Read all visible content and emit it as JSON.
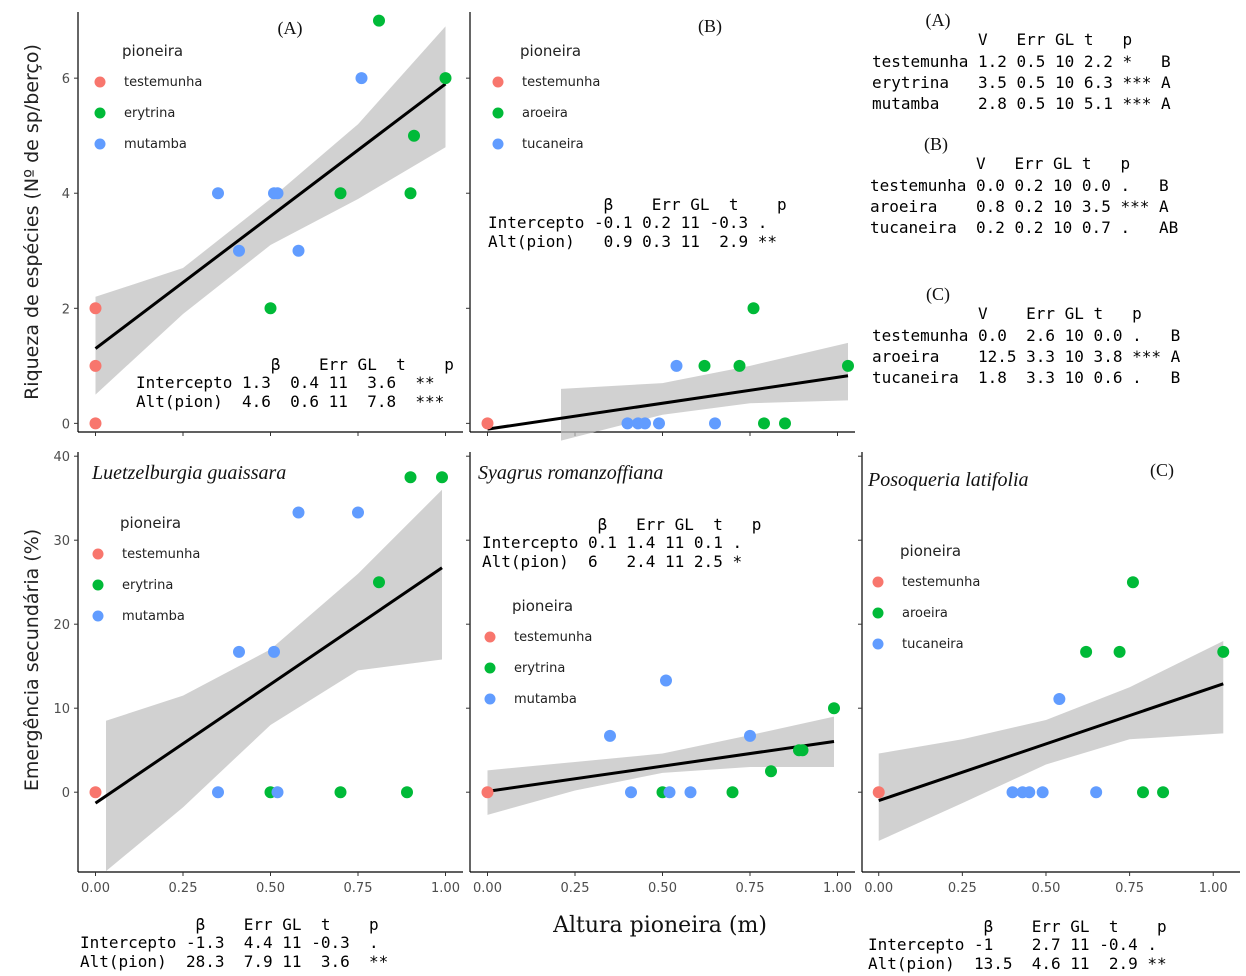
{
  "chart_data": [
    {
      "type": "scatter",
      "panel": "A",
      "title": "(A)",
      "species": "",
      "ylabel": "Riqueza de espécies  (Nº de sp/berço)",
      "yticks": [
        0,
        2,
        4,
        6
      ],
      "ylim": [
        -0.15,
        7.15
      ],
      "xticks": [],
      "xlim": [
        -0.05,
        1.05
      ],
      "legend": {
        "title": "pioneira",
        "items": [
          {
            "name": "testemunha",
            "color": "#f8766d"
          },
          {
            "name": "erytrina",
            "color": "#00ba38"
          },
          {
            "name": "mutamba",
            "color": "#619cff"
          }
        ]
      },
      "points": [
        {
          "x": 0.0,
          "y": 2,
          "g": 0
        },
        {
          "x": 0.0,
          "y": 1,
          "g": 0
        },
        {
          "x": 0.0,
          "y": 0,
          "g": 0
        },
        {
          "x": 0.5,
          "y": 2,
          "g": 1
        },
        {
          "x": 0.7,
          "y": 4,
          "g": 1
        },
        {
          "x": 0.81,
          "y": 7,
          "g": 1
        },
        {
          "x": 0.9,
          "y": 4,
          "g": 1
        },
        {
          "x": 0.91,
          "y": 5,
          "g": 1
        },
        {
          "x": 1.0,
          "y": 6,
          "g": 1
        },
        {
          "x": 0.35,
          "y": 4,
          "g": 2
        },
        {
          "x": 0.41,
          "y": 3,
          "g": 2
        },
        {
          "x": 0.51,
          "y": 4,
          "g": 2
        },
        {
          "x": 0.52,
          "y": 4,
          "g": 2
        },
        {
          "x": 0.58,
          "y": 3,
          "g": 2
        },
        {
          "x": 0.76,
          "y": 6,
          "g": 2
        }
      ],
      "fit": {
        "x0": 0.0,
        "x1": 1.0,
        "intercept": 1.3,
        "slope": 4.6
      },
      "band": [
        [
          0.0,
          0.5,
          2.2
        ],
        [
          0.25,
          1.9,
          2.7
        ],
        [
          0.5,
          3.1,
          3.9
        ],
        [
          0.75,
          3.9,
          5.2
        ],
        [
          1.0,
          4.8,
          6.9
        ]
      ],
      "stats": {
        "header": "              β    Err GL  t    p",
        "rows": [
          "Intercepto 1.3  0.4 11  3.6  **",
          "Alt(pion)  4.6  0.6 11  7.8  ***"
        ]
      }
    },
    {
      "type": "scatter",
      "panel": "B",
      "title": "(B)",
      "species": "",
      "ylabel": "",
      "yticks": [
        0,
        2,
        4,
        6
      ],
      "ylim": [
        -0.15,
        7.15
      ],
      "xticks": [],
      "xlim": [
        -0.05,
        1.05
      ],
      "legend": {
        "title": "pioneira",
        "items": [
          {
            "name": "testemunha",
            "color": "#f8766d"
          },
          {
            "name": "aroeira",
            "color": "#00ba38"
          },
          {
            "name": "tucaneira",
            "color": "#619cff"
          }
        ]
      },
      "points": [
        {
          "x": 0.0,
          "y": 0,
          "g": 0
        },
        {
          "x": 0.62,
          "y": 1,
          "g": 1
        },
        {
          "x": 0.72,
          "y": 1,
          "g": 1
        },
        {
          "x": 0.76,
          "y": 2,
          "g": 1
        },
        {
          "x": 0.79,
          "y": 0,
          "g": 1
        },
        {
          "x": 0.85,
          "y": 0,
          "g": 1
        },
        {
          "x": 1.03,
          "y": 1,
          "g": 1
        },
        {
          "x": 0.4,
          "y": 0,
          "g": 2
        },
        {
          "x": 0.43,
          "y": 0,
          "g": 2
        },
        {
          "x": 0.45,
          "y": 0,
          "g": 2
        },
        {
          "x": 0.49,
          "y": 0,
          "g": 2
        },
        {
          "x": 0.54,
          "y": 1,
          "g": 2
        },
        {
          "x": 0.65,
          "y": 0,
          "g": 2
        }
      ],
      "fit": {
        "x0": 0.0,
        "x1": 1.03,
        "intercept": -0.1,
        "slope": 0.9
      },
      "band": [
        [
          0.21,
          -0.3,
          0.6
        ],
        [
          0.5,
          0.15,
          0.7
        ],
        [
          0.75,
          0.35,
          1.0
        ],
        [
          1.03,
          0.4,
          1.4
        ]
      ],
      "stats": {
        "header": "            β    Err GL  t    p",
        "rows": [
          "Intercepto -0.1 0.2 11 -0.3 .",
          "Alt(pion)   0.9 0.3 11  2.9 **"
        ]
      }
    },
    {
      "type": "scatter",
      "panel": "A",
      "title": "",
      "species": "Luetzelburgia guaissara",
      "ylabel": "Emergência secundária  (%)",
      "yticks": [
        0,
        10,
        20,
        30,
        40
      ],
      "ylim": [
        -9.5,
        40.5
      ],
      "xticks": [
        "0.00",
        "0.25",
        "0.50",
        "0.75",
        "1.00"
      ],
      "xlim": [
        -0.05,
        1.05
      ],
      "legend": {
        "title": "pioneira",
        "items": [
          {
            "name": "testemunha",
            "color": "#f8766d"
          },
          {
            "name": "erytrina",
            "color": "#00ba38"
          },
          {
            "name": "mutamba",
            "color": "#619cff"
          }
        ]
      },
      "points": [
        {
          "x": 0.0,
          "y": 0,
          "g": 0
        },
        {
          "x": 0.5,
          "y": 0,
          "g": 1
        },
        {
          "x": 0.7,
          "y": 0,
          "g": 1
        },
        {
          "x": 0.81,
          "y": 25,
          "g": 1
        },
        {
          "x": 0.89,
          "y": 0,
          "g": 1
        },
        {
          "x": 0.9,
          "y": 37.5,
          "g": 1
        },
        {
          "x": 0.99,
          "y": 37.5,
          "g": 1
        },
        {
          "x": 0.35,
          "y": 0,
          "g": 2
        },
        {
          "x": 0.41,
          "y": 16.7,
          "g": 2
        },
        {
          "x": 0.51,
          "y": 16.7,
          "g": 2
        },
        {
          "x": 0.52,
          "y": 0,
          "g": 2
        },
        {
          "x": 0.58,
          "y": 33.3,
          "g": 2
        },
        {
          "x": 0.75,
          "y": 33.3,
          "g": 2
        }
      ],
      "fit": {
        "x0": 0.0,
        "x1": 0.99,
        "intercept": -1.3,
        "slope": 28.3
      },
      "band": [
        [
          0.03,
          -9.4,
          8.5
        ],
        [
          0.25,
          -1.8,
          11.5
        ],
        [
          0.5,
          8.0,
          17.0
        ],
        [
          0.75,
          14.5,
          26.0
        ],
        [
          0.99,
          15.8,
          36.0
        ]
      ],
      "stats": {
        "header": "            β    Err GL  t    p",
        "rows": [
          "Intercepto -1.3  4.4 11 -0.3  .",
          "Alt(pion)  28.3  7.9 11  3.6  **"
        ]
      }
    },
    {
      "type": "scatter",
      "panel": "B",
      "title": "",
      "species": "Syagrus romanzoffiana",
      "ylabel": "",
      "yticks": [
        0,
        10,
        20,
        30,
        40
      ],
      "ylim": [
        -9.5,
        40.5
      ],
      "xticks": [
        "0.00",
        "0.25",
        "0.50",
        "0.75",
        "1.00"
      ],
      "xlim": [
        -0.05,
        1.05
      ],
      "legend": {
        "title": "pioneira",
        "items": [
          {
            "name": "testemunha",
            "color": "#f8766d"
          },
          {
            "name": "erytrina",
            "color": "#00ba38"
          },
          {
            "name": "mutamba",
            "color": "#619cff"
          }
        ]
      },
      "points": [
        {
          "x": 0.0,
          "y": 0,
          "g": 0
        },
        {
          "x": 0.5,
          "y": 0,
          "g": 1
        },
        {
          "x": 0.7,
          "y": 0,
          "g": 1
        },
        {
          "x": 0.81,
          "y": 2.5,
          "g": 1
        },
        {
          "x": 0.89,
          "y": 5,
          "g": 1
        },
        {
          "x": 0.9,
          "y": 5,
          "g": 1
        },
        {
          "x": 0.99,
          "y": 10,
          "g": 1
        },
        {
          "x": 0.35,
          "y": 6.7,
          "g": 2
        },
        {
          "x": 0.41,
          "y": 0,
          "g": 2
        },
        {
          "x": 0.51,
          "y": 13.3,
          "g": 2
        },
        {
          "x": 0.52,
          "y": 0,
          "g": 2
        },
        {
          "x": 0.58,
          "y": 0,
          "g": 2
        },
        {
          "x": 0.75,
          "y": 6.7,
          "g": 2
        }
      ],
      "fit": {
        "x0": 0.0,
        "x1": 0.99,
        "intercept": 0.1,
        "slope": 6
      },
      "band": [
        [
          0.0,
          -2.7,
          2.6
        ],
        [
          0.25,
          0.2,
          3.6
        ],
        [
          0.5,
          2.3,
          4.6
        ],
        [
          0.75,
          3.0,
          6.8
        ],
        [
          0.99,
          3.0,
          9.0
        ]
      ],
      "stats": {
        "header": "            β   Err GL  t   p",
        "rows": [
          "Intercepto 0.1 1.4 11 0.1 .",
          "Alt(pion)  6   2.4 11 2.5 *"
        ]
      }
    },
    {
      "type": "scatter",
      "panel": "C",
      "title": "(C)",
      "species": "Posoqueria latifolia",
      "ylabel": "",
      "yticks": [
        0,
        10,
        20,
        30,
        40
      ],
      "ylim": [
        -9.5,
        40.5
      ],
      "xticks": [
        "0.00",
        "0.25",
        "0.50",
        "0.75",
        "1.00"
      ],
      "xlim": [
        -0.05,
        1.08
      ],
      "legend": {
        "title": "pioneira",
        "items": [
          {
            "name": "testemunha",
            "color": "#f8766d"
          },
          {
            "name": "aroeira",
            "color": "#00ba38"
          },
          {
            "name": "tucaneira",
            "color": "#619cff"
          }
        ]
      },
      "points": [
        {
          "x": 0.0,
          "y": 0,
          "g": 0
        },
        {
          "x": 0.62,
          "y": 16.7,
          "g": 1
        },
        {
          "x": 0.72,
          "y": 16.7,
          "g": 1
        },
        {
          "x": 0.76,
          "y": 25,
          "g": 1
        },
        {
          "x": 0.79,
          "y": 0,
          "g": 1
        },
        {
          "x": 0.85,
          "y": 0,
          "g": 1
        },
        {
          "x": 1.03,
          "y": 16.7,
          "g": 1
        },
        {
          "x": 0.4,
          "y": 0,
          "g": 2
        },
        {
          "x": 0.43,
          "y": 0,
          "g": 2
        },
        {
          "x": 0.45,
          "y": 0,
          "g": 2
        },
        {
          "x": 0.49,
          "y": 0,
          "g": 2
        },
        {
          "x": 0.54,
          "y": 11.1,
          "g": 2
        },
        {
          "x": 0.65,
          "y": 0,
          "g": 2
        }
      ],
      "fit": {
        "x0": 0.0,
        "x1": 1.03,
        "intercept": -1,
        "slope": 13.5
      },
      "band": [
        [
          0.0,
          -5.8,
          4.6
        ],
        [
          0.25,
          -1.3,
          6.3
        ],
        [
          0.5,
          3.3,
          8.6
        ],
        [
          0.75,
          6.3,
          12.5
        ],
        [
          1.03,
          7.0,
          18.0
        ]
      ],
      "stats": {
        "header": "            β    Err GL  t    p",
        "rows": [
          "Intercepto -1    2.7 11 -0.4 .",
          "Alt(pion)  13.5  4.6 11  2.9 **"
        ]
      }
    }
  ],
  "xlabel": "Altura pioneira (m)",
  "contrast_tables": [
    {
      "title": "(A)",
      "header": "           V   Err GL t   p",
      "rows": [
        "testemunha 1.2 0.5 10 2.2 *   B",
        "erytrina   3.5 0.5 10 6.3 *** A",
        "mutamba    2.8 0.5 10 5.1 *** A"
      ]
    },
    {
      "title": "(B)",
      "header": "           V   Err GL t   p",
      "rows": [
        "testemunha 0.0 0.2 10 0.0 .   B",
        "aroeira    0.8 0.2 10 3.5 *** A",
        "tucaneira  0.2 0.2 10 0.7 .   AB"
      ]
    },
    {
      "title": "(C)",
      "header": "           V    Err GL t   p",
      "rows": [
        "testemunha 0.0  2.6 10 0.0 .   B",
        "aroeira    12.5 3.3 10 3.8 *** A",
        "tucaneira  1.8  3.3 10 0.6 .   B"
      ]
    }
  ]
}
